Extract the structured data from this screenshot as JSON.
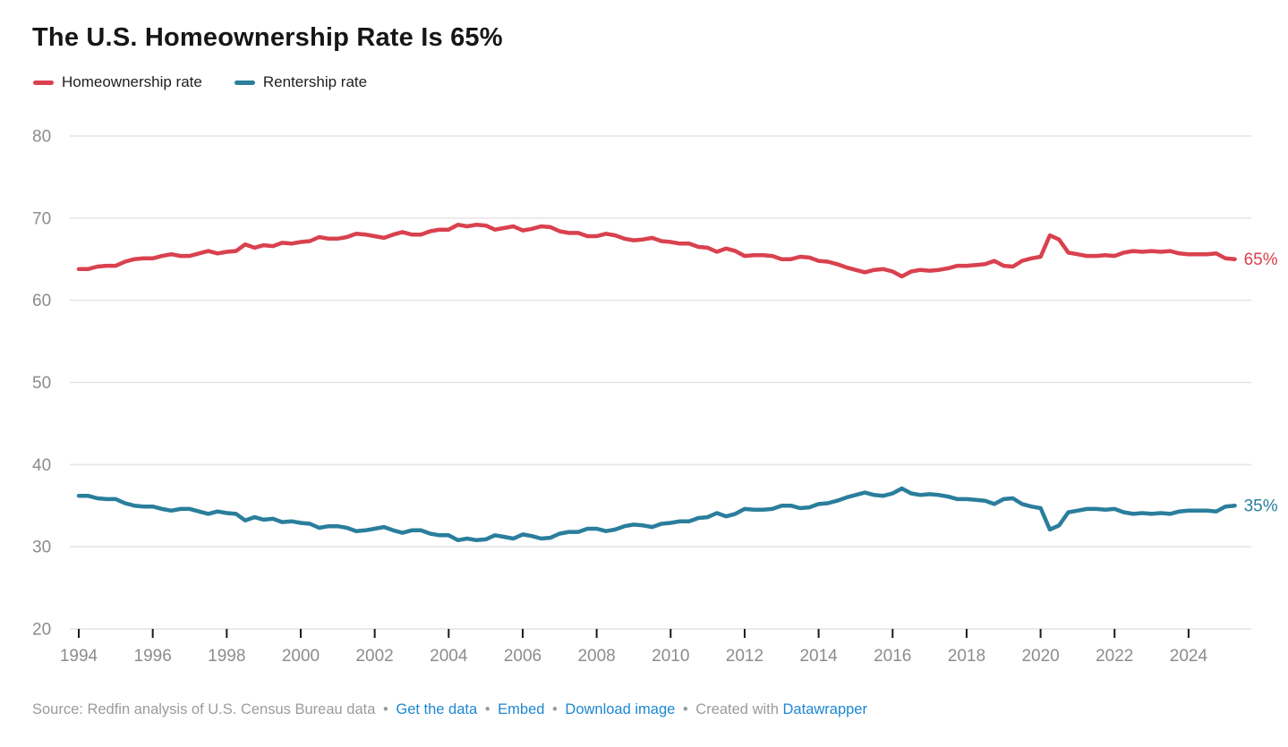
{
  "header": {
    "title": "The U.S. Homeownership Rate Is 65%"
  },
  "legend": {
    "items": [
      {
        "label": "Homeownership rate",
        "color": "#d9414e"
      },
      {
        "label": "Rentership rate",
        "color": "#2a7e9c"
      }
    ]
  },
  "chart_data": {
    "type": "line",
    "title": "The U.S. Homeownership Rate Is 65%",
    "xlabel": "",
    "ylabel": "",
    "ylim": [
      20,
      80
    ],
    "xlim": [
      1994,
      2025.5
    ],
    "grid": "horizontal",
    "legend_position": "top-left",
    "y_ticks": [
      80,
      70,
      60,
      50,
      40,
      30,
      20
    ],
    "x_ticks": [
      1994,
      1996,
      1998,
      2000,
      2002,
      2004,
      2006,
      2008,
      2010,
      2012,
      2014,
      2016,
      2018,
      2020,
      2022,
      2024
    ],
    "x": [
      1994,
      1994.25,
      1994.5,
      1994.75,
      1995,
      1995.25,
      1995.5,
      1995.75,
      1996,
      1996.25,
      1996.5,
      1996.75,
      1997,
      1997.25,
      1997.5,
      1997.75,
      1998,
      1998.25,
      1998.5,
      1998.75,
      1999,
      1999.25,
      1999.5,
      1999.75,
      2000,
      2000.25,
      2000.5,
      2000.75,
      2001,
      2001.25,
      2001.5,
      2001.75,
      2002,
      2002.25,
      2002.5,
      2002.75,
      2003,
      2003.25,
      2003.5,
      2003.75,
      2004,
      2004.25,
      2004.5,
      2004.75,
      2005,
      2005.25,
      2005.5,
      2005.75,
      2006,
      2006.25,
      2006.5,
      2006.75,
      2007,
      2007.25,
      2007.5,
      2007.75,
      2008,
      2008.25,
      2008.5,
      2008.75,
      2009,
      2009.25,
      2009.5,
      2009.75,
      2010,
      2010.25,
      2010.5,
      2010.75,
      2011,
      2011.25,
      2011.5,
      2011.75,
      2012,
      2012.25,
      2012.5,
      2012.75,
      2013,
      2013.25,
      2013.5,
      2013.75,
      2014,
      2014.25,
      2014.5,
      2014.75,
      2015,
      2015.25,
      2015.5,
      2015.75,
      2016,
      2016.25,
      2016.5,
      2016.75,
      2017,
      2017.25,
      2017.5,
      2017.75,
      2018,
      2018.25,
      2018.5,
      2018.75,
      2019,
      2019.25,
      2019.5,
      2019.75,
      2020,
      2020.25,
      2020.5,
      2020.75,
      2021,
      2021.25,
      2021.5,
      2021.75,
      2022,
      2022.25,
      2022.5,
      2022.75,
      2023,
      2023.25,
      2023.5,
      2023.75,
      2024,
      2024.25,
      2024.5,
      2024.75,
      2025,
      2025.25
    ],
    "series": [
      {
        "name": "Homeownership rate",
        "color": "#d9414e",
        "end_label": "65%",
        "values": [
          63.8,
          63.8,
          64.1,
          64.2,
          64.2,
          64.7,
          65.0,
          65.1,
          65.1,
          65.4,
          65.6,
          65.4,
          65.4,
          65.7,
          66.0,
          65.7,
          65.9,
          66.0,
          66.8,
          66.4,
          66.7,
          66.6,
          67.0,
          66.9,
          67.1,
          67.2,
          67.7,
          67.5,
          67.5,
          67.7,
          68.1,
          68.0,
          67.8,
          67.6,
          68.0,
          68.3,
          68.0,
          68.0,
          68.4,
          68.6,
          68.6,
          69.2,
          69.0,
          69.2,
          69.1,
          68.6,
          68.8,
          69.0,
          68.5,
          68.7,
          69.0,
          68.9,
          68.4,
          68.2,
          68.2,
          67.8,
          67.8,
          68.1,
          67.9,
          67.5,
          67.3,
          67.4,
          67.6,
          67.2,
          67.1,
          66.9,
          66.9,
          66.5,
          66.4,
          65.9,
          66.3,
          66.0,
          65.4,
          65.5,
          65.5,
          65.4,
          65.0,
          65.0,
          65.3,
          65.2,
          64.8,
          64.7,
          64.4,
          64.0,
          63.7,
          63.4,
          63.7,
          63.8,
          63.5,
          62.9,
          63.5,
          63.7,
          63.6,
          63.7,
          63.9,
          64.2,
          64.2,
          64.3,
          64.4,
          64.8,
          64.2,
          64.1,
          64.8,
          65.1,
          65.3,
          67.9,
          67.4,
          65.8,
          65.6,
          65.4,
          65.4,
          65.5,
          65.4,
          65.8,
          66.0,
          65.9,
          66.0,
          65.9,
          66.0,
          65.7,
          65.6,
          65.6,
          65.6,
          65.7,
          65.1,
          65.0
        ]
      },
      {
        "name": "Rentership rate",
        "color": "#2a7e9c",
        "end_label": "35%",
        "values": [
          36.2,
          36.2,
          35.9,
          35.8,
          35.8,
          35.3,
          35.0,
          34.9,
          34.9,
          34.6,
          34.4,
          34.6,
          34.6,
          34.3,
          34.0,
          34.3,
          34.1,
          34.0,
          33.2,
          33.6,
          33.3,
          33.4,
          33.0,
          33.1,
          32.9,
          32.8,
          32.3,
          32.5,
          32.5,
          32.3,
          31.9,
          32.0,
          32.2,
          32.4,
          32.0,
          31.7,
          32.0,
          32.0,
          31.6,
          31.4,
          31.4,
          30.8,
          31.0,
          30.8,
          30.9,
          31.4,
          31.2,
          31.0,
          31.5,
          31.3,
          31.0,
          31.1,
          31.6,
          31.8,
          31.8,
          32.2,
          32.2,
          31.9,
          32.1,
          32.5,
          32.7,
          32.6,
          32.4,
          32.8,
          32.9,
          33.1,
          33.1,
          33.5,
          33.6,
          34.1,
          33.7,
          34.0,
          34.6,
          34.5,
          34.5,
          34.6,
          35.0,
          35.0,
          34.7,
          34.8,
          35.2,
          35.3,
          35.6,
          36.0,
          36.3,
          36.6,
          36.3,
          36.2,
          36.5,
          37.1,
          36.5,
          36.3,
          36.4,
          36.3,
          36.1,
          35.8,
          35.8,
          35.7,
          35.6,
          35.2,
          35.8,
          35.9,
          35.2,
          34.9,
          34.7,
          32.1,
          32.6,
          34.2,
          34.4,
          34.6,
          34.6,
          34.5,
          34.6,
          34.2,
          34.0,
          34.1,
          34.0,
          34.1,
          34.0,
          34.3,
          34.4,
          34.4,
          34.4,
          34.3,
          34.9,
          35.0
        ]
      }
    ]
  },
  "footer": {
    "source": "Source: Redfin analysis of U.S. Census Bureau data",
    "separator": "•",
    "links": [
      {
        "label": "Get the data"
      },
      {
        "label": "Embed"
      },
      {
        "label": "Download image"
      }
    ],
    "created_with": "Created with",
    "created_with_link": "Datawrapper",
    "link_color": "#1e87d2"
  }
}
